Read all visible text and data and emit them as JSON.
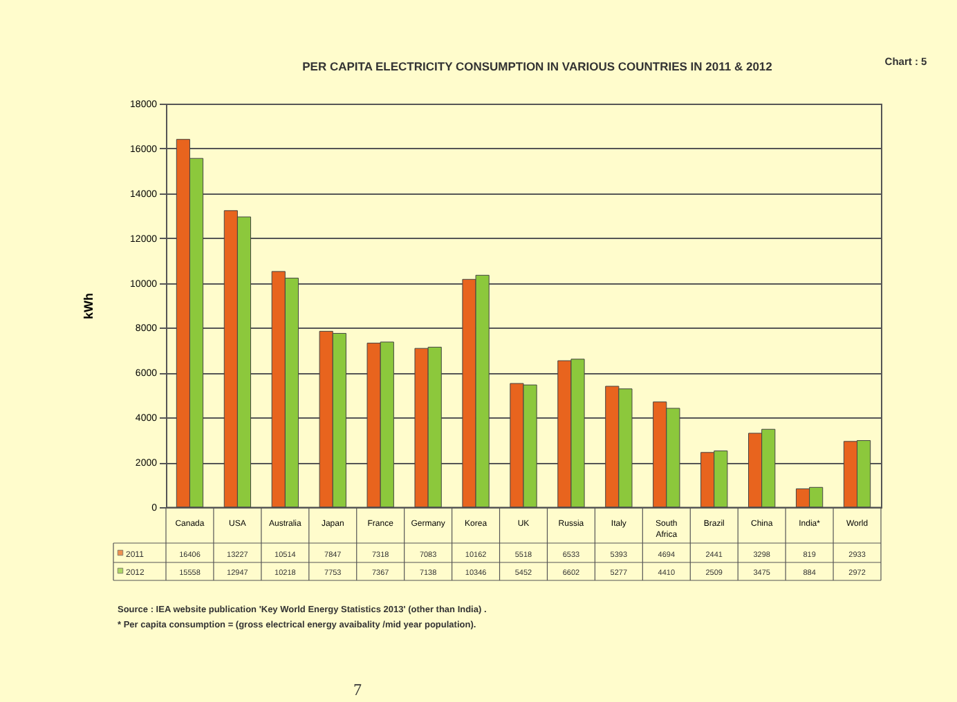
{
  "chart_data": {
    "type": "bar",
    "title": "PER CAPITA ELECTRICITY CONSUMPTION  IN VARIOUS COUNTRIES IN 2011 & 2012",
    "ylabel": "kWh",
    "categories": [
      "Canada",
      "USA",
      "Australia",
      "Japan",
      "France",
      "Germany",
      "Korea",
      "UK",
      "Russia",
      "Italy",
      "South Africa",
      "Brazil",
      "China",
      "India*",
      "World"
    ],
    "series": [
      {
        "name": "2011",
        "color": "#e8641e",
        "values": [
          16406,
          13227,
          10514,
          7847,
          7318,
          7083,
          10162,
          5518,
          6533,
          5393,
          4694,
          2441,
          3298,
          819,
          2933
        ]
      },
      {
        "name": "2012",
        "color": "#8cc83c",
        "values": [
          15558,
          12947,
          10218,
          7753,
          7367,
          7138,
          10346,
          5452,
          6602,
          5277,
          4410,
          2509,
          3475,
          884,
          2972
        ]
      }
    ],
    "ylim": [
      0,
      18000
    ],
    "yticks": [
      0,
      2000,
      4000,
      6000,
      8000,
      10000,
      12000,
      14000,
      16000,
      18000
    ],
    "grid": "y",
    "legend": "bottom",
    "data_labels": true,
    "annotations": [
      "Chart : 5",
      "Source : IEA website publication 'Key World Energy Statistics 2013' (other than India) .",
      "* Per capita consumption  = (gross electrical energy avaibality /mid year population).",
      "7"
    ]
  }
}
